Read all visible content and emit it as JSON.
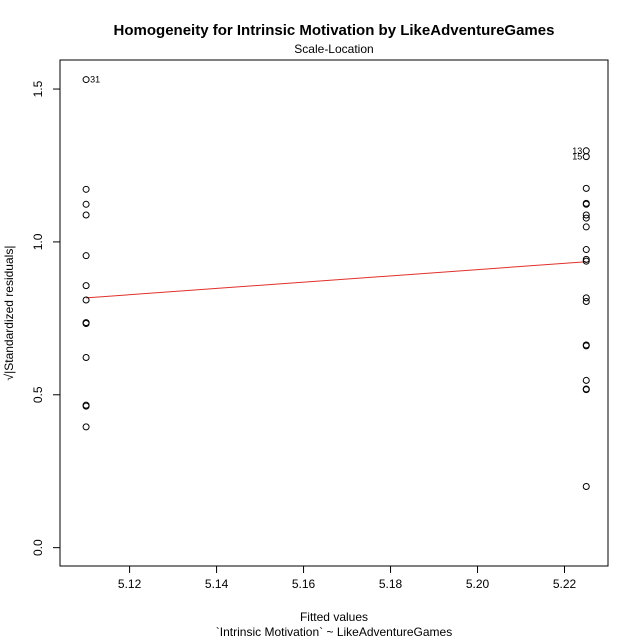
{
  "chart_data": {
    "type": "scatter",
    "title": "Homogeneity for Intrinsic Motivation by LikeAdventureGames",
    "subtitle": "Scale-Location",
    "xlabel": "Fitted values",
    "xlabel2": "`Intrinsic Motivation` ~ LikeAdventureGames",
    "ylabel": "√|Standardized residuals|",
    "xlim": [
      5.104,
      5.23
    ],
    "ylim": [
      -0.06,
      1.595
    ],
    "x_ticks": [
      5.12,
      5.14,
      5.16,
      5.18,
      5.2,
      5.22
    ],
    "x_tick_labels": [
      "5.12",
      "5.14",
      "5.16",
      "5.18",
      "5.20",
      "5.22"
    ],
    "y_ticks": [
      0.0,
      0.5,
      1.0,
      1.5
    ],
    "y_tick_labels": [
      "0.0",
      "0.5",
      "1.0",
      "1.5"
    ],
    "grid": false,
    "points": [
      {
        "x": 5.11,
        "y": 1.531,
        "label": "31"
      },
      {
        "x": 5.11,
        "y": 1.172
      },
      {
        "x": 5.11,
        "y": 1.123
      },
      {
        "x": 5.11,
        "y": 1.088
      },
      {
        "x": 5.11,
        "y": 0.955
      },
      {
        "x": 5.11,
        "y": 0.857
      },
      {
        "x": 5.11,
        "y": 0.81
      },
      {
        "x": 5.11,
        "y": 0.736
      },
      {
        "x": 5.11,
        "y": 0.733
      },
      {
        "x": 5.11,
        "y": 0.622
      },
      {
        "x": 5.11,
        "y": 0.466
      },
      {
        "x": 5.11,
        "y": 0.463
      },
      {
        "x": 5.11,
        "y": 0.395
      },
      {
        "x": 5.225,
        "y": 1.298,
        "label": "13"
      },
      {
        "x": 5.225,
        "y": 1.279,
        "label": "15"
      },
      {
        "x": 5.225,
        "y": 1.175
      },
      {
        "x": 5.225,
        "y": 1.126
      },
      {
        "x": 5.225,
        "y": 1.123
      },
      {
        "x": 5.225,
        "y": 1.088
      },
      {
        "x": 5.225,
        "y": 1.078
      },
      {
        "x": 5.225,
        "y": 1.049
      },
      {
        "x": 5.225,
        "y": 0.975
      },
      {
        "x": 5.225,
        "y": 0.943
      },
      {
        "x": 5.225,
        "y": 0.937
      },
      {
        "x": 5.225,
        "y": 0.817
      },
      {
        "x": 5.225,
        "y": 0.805
      },
      {
        "x": 5.225,
        "y": 0.663
      },
      {
        "x": 5.225,
        "y": 0.66
      },
      {
        "x": 5.225,
        "y": 0.547
      },
      {
        "x": 5.225,
        "y": 0.519
      },
      {
        "x": 5.225,
        "y": 0.517
      },
      {
        "x": 5.225,
        "y": 0.2
      }
    ],
    "smooth_line": {
      "color": "#e0302a",
      "points": [
        {
          "x": 5.11,
          "y": 0.817
        },
        {
          "x": 5.225,
          "y": 0.935
        }
      ]
    },
    "point_color": "#000000"
  }
}
